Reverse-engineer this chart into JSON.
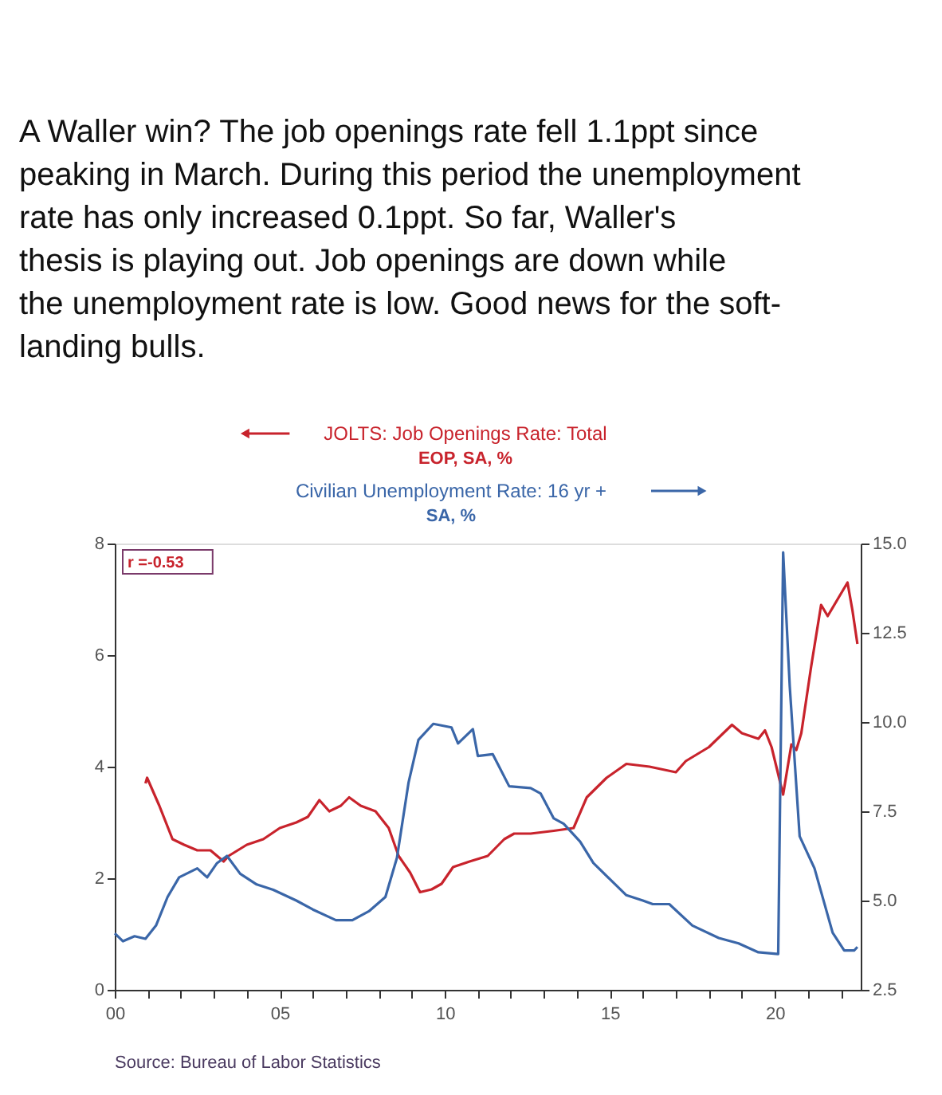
{
  "chart_data": {
    "type": "line",
    "title": "A Waller win? The job openings rate fell 1.1ppt since peaking in March. During this period the unemployment rate has only increased 0.1ppt. So far, Waller's thesis is playing out. Job openings are down while the unemployment rate is low. Good news for the soft-landing bulls.",
    "annotations": [
      "r =-0.53",
      "Source:  Bureau of Labor Statistics",
      "EOP, SA, %",
      "SA, %"
    ],
    "xlim": [
      2000,
      2022.6
    ],
    "ylim": [
      0,
      8
    ],
    "yticks": [
      0,
      2,
      4,
      6,
      8
    ],
    "y2lim": [
      2.5,
      15.0
    ],
    "y2ticks": [
      {
        "value": 2.5,
        "label": "2.5"
      },
      {
        "value": 5,
        "label": "5.0"
      },
      {
        "value": 7.5,
        "label": "7.5"
      },
      {
        "value": 10,
        "label": "10.0"
      },
      {
        "value": 12.5,
        "label": "12.5"
      },
      {
        "value": 15,
        "label": "15.0"
      }
    ],
    "xticks": [
      {
        "value": 2000,
        "label": "00"
      },
      {
        "value": 2001,
        "label": null
      },
      {
        "value": 2002,
        "label": null
      },
      {
        "value": 2003,
        "label": null
      },
      {
        "value": 2004,
        "label": null
      },
      {
        "value": 2005,
        "label": "05"
      },
      {
        "value": 2006,
        "label": null
      },
      {
        "value": 2007,
        "label": null
      },
      {
        "value": 2008,
        "label": null
      },
      {
        "value": 2009,
        "label": null
      },
      {
        "value": 2010,
        "label": "10"
      },
      {
        "value": 2011,
        "label": null
      },
      {
        "value": 2012,
        "label": null
      },
      {
        "value": 2013,
        "label": null
      },
      {
        "value": 2014,
        "label": null
      },
      {
        "value": 2015,
        "label": "15"
      },
      {
        "value": 2016,
        "label": null
      },
      {
        "value": 2017,
        "label": null
      },
      {
        "value": 2018,
        "label": null
      },
      {
        "value": 2019,
        "label": null
      },
      {
        "value": 2020,
        "label": "20"
      },
      {
        "value": 2021,
        "label": null
      },
      {
        "value": 2022,
        "label": null
      }
    ],
    "grid": false,
    "legend": "top",
    "marker": "none",
    "line_style": "solid",
    "series": [
      {
        "name": "JOLTS: Job Openings Rate: Total",
        "color": "#c8232c",
        "x": [
          2000.93,
          2000.98,
          2001.35,
          2001.75,
          2002.1,
          2002.5,
          2002.9,
          2003.3,
          2003.45,
          2004.0,
          2004.5,
          2005.0,
          2005.5,
          2005.85,
          2006.2,
          2006.5,
          2006.85,
          2007.1,
          2007.45,
          2007.9,
          2008.3,
          2008.6,
          2008.95,
          2009.25,
          2009.6,
          2009.9,
          2010.25,
          2010.75,
          2011.3,
          2011.8,
          2012.1,
          2012.6,
          2013.3,
          2013.9,
          2014.3,
          2014.9,
          2015.5,
          2016.2,
          2017.0,
          2017.3,
          2018.0,
          2018.7,
          2019.0,
          2019.5,
          2019.7,
          2019.9,
          2020.25,
          2020.5,
          2020.65,
          2020.8,
          2021.1,
          2021.4,
          2021.6,
          2021.9,
          2022.2,
          2022.35,
          2022.5
        ],
        "values": [
          3.7,
          3.8,
          3.3,
          2.7,
          2.6,
          2.5,
          2.5,
          2.3,
          2.4,
          2.6,
          2.7,
          2.9,
          3.0,
          3.1,
          3.4,
          3.2,
          3.3,
          3.45,
          3.3,
          3.2,
          2.9,
          2.4,
          2.1,
          1.75,
          1.8,
          1.9,
          2.2,
          2.3,
          2.4,
          2.7,
          2.8,
          2.8,
          2.85,
          2.9,
          3.45,
          3.8,
          4.05,
          4.0,
          3.9,
          4.1,
          4.35,
          4.75,
          4.6,
          4.5,
          4.65,
          4.35,
          3.5,
          4.4,
          4.3,
          4.6,
          5.8,
          6.9,
          6.7,
          7.0,
          7.3,
          6.8,
          6.2
        ]
      },
      {
        "name": "Civilian Unemployment Rate: 16 yr +",
        "color": "#3a66a8",
        "axis": "y2",
        "x": [
          2000.0,
          2000.25,
          2000.6,
          2000.93,
          2001.25,
          2001.6,
          2001.95,
          2002.5,
          2002.8,
          2003.1,
          2003.4,
          2003.8,
          2004.3,
          2004.8,
          2005.5,
          2006.0,
          2006.7,
          2007.2,
          2007.7,
          2008.2,
          2008.55,
          2008.9,
          2009.2,
          2009.65,
          2010.2,
          2010.4,
          2010.85,
          2011.0,
          2011.45,
          2011.95,
          2012.6,
          2012.9,
          2013.3,
          2013.6,
          2014.1,
          2014.5,
          2015.0,
          2015.5,
          2016.0,
          2016.3,
          2016.8,
          2017.5,
          2018.3,
          2018.9,
          2019.5,
          2020.1,
          2020.25,
          2020.45,
          2020.75,
          2021.2,
          2021.75,
          2022.1,
          2022.4,
          2022.5
        ],
        "values": [
          4.08,
          3.86,
          4.0,
          3.93,
          4.3,
          5.1,
          5.65,
          5.9,
          5.65,
          6.05,
          6.25,
          5.75,
          5.45,
          5.3,
          5.0,
          4.75,
          4.45,
          4.45,
          4.7,
          5.1,
          6.2,
          8.3,
          9.5,
          9.95,
          9.85,
          9.4,
          9.8,
          9.05,
          9.1,
          8.2,
          8.15,
          8.0,
          7.3,
          7.15,
          6.65,
          6.05,
          5.6,
          5.15,
          5.0,
          4.9,
          4.9,
          4.3,
          3.95,
          3.8,
          3.55,
          3.5,
          14.75,
          11.0,
          6.8,
          5.9,
          4.1,
          3.6,
          3.6,
          3.7
        ]
      }
    ]
  }
}
